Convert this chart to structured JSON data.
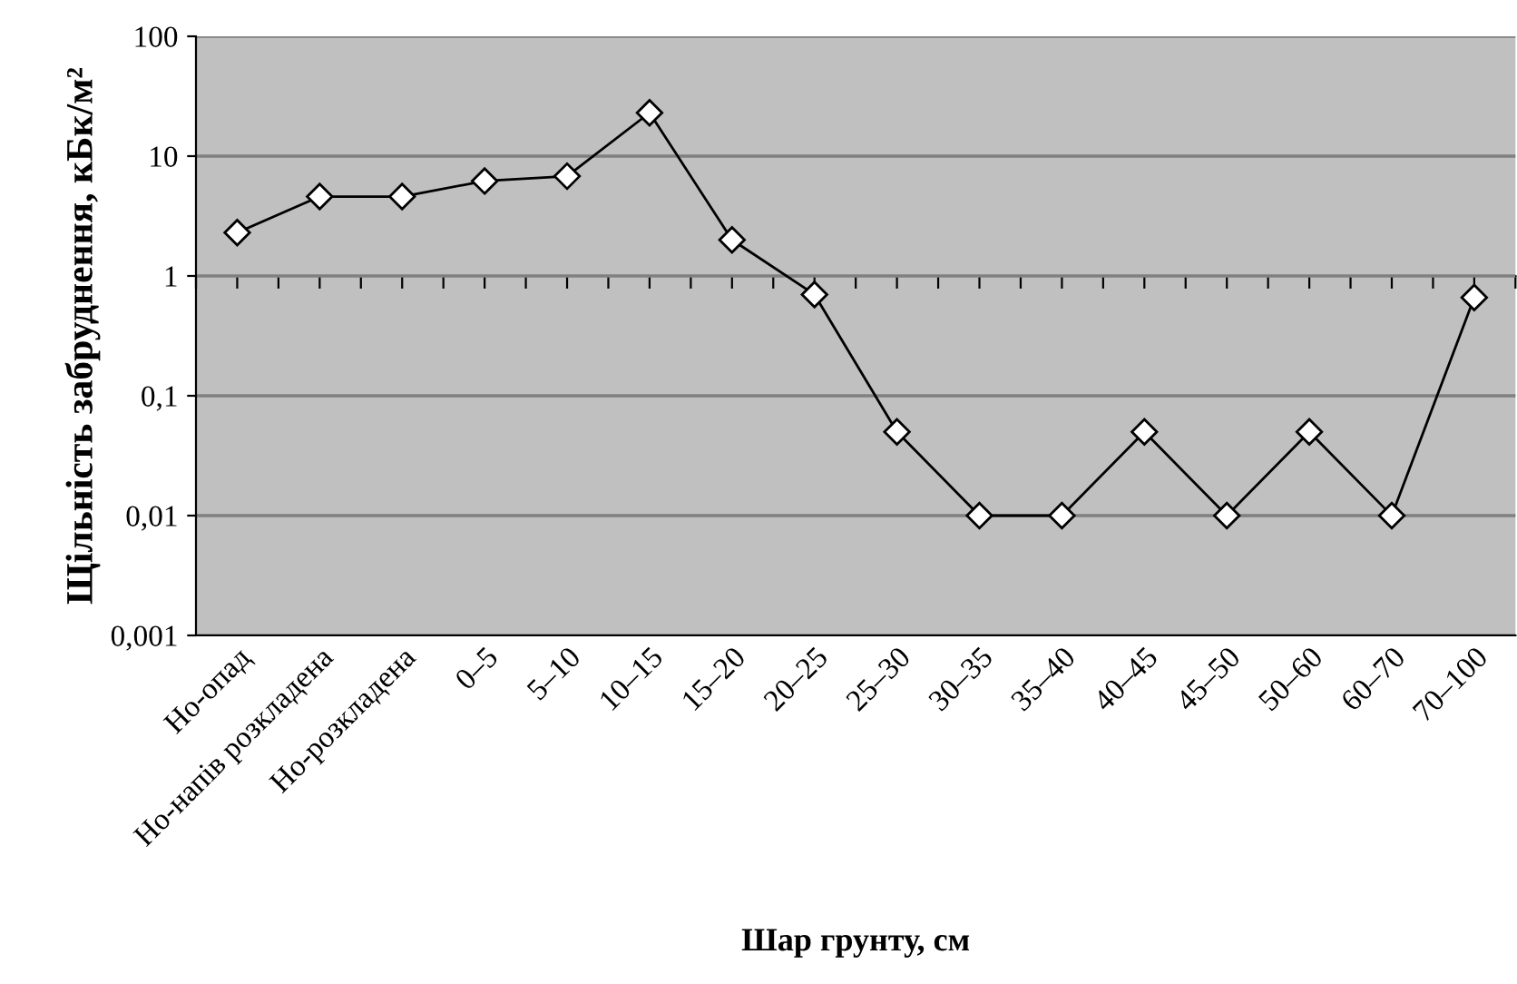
{
  "chart_data": {
    "type": "line",
    "xlabel": "Шар грунту, см",
    "ylabel": "Щільність забруднення, кБк/м²",
    "categories": [
      "Но-опад",
      "Но-напів розкладена",
      "Но-розкладена",
      "0–5",
      "5–10",
      "10–15",
      "15–20",
      "20–25",
      "25–30",
      "30–35",
      "35–40",
      "40–45",
      "45–50",
      "50–60",
      "60–70",
      "70–100"
    ],
    "series": [
      {
        "color": "#000000",
        "values": [
          2.3,
          4.6,
          4.6,
          6.2,
          6.8,
          23,
          2.0,
          0.7,
          0.05,
          0.01,
          0.01,
          0.05,
          0.01,
          0.05,
          0.01,
          0.66
        ]
      }
    ],
    "log": "y",
    "ylim": [
      0.001,
      100
    ],
    "yticks": [
      {
        "value": 0.001,
        "label": "0,001"
      },
      {
        "value": 0.01,
        "label": "0,01"
      },
      {
        "value": 0.1,
        "label": "0,1"
      },
      1,
      10,
      100
    ],
    "grid": "y",
    "marker": "diamond",
    "line_style": "solid",
    "legend": false
  }
}
